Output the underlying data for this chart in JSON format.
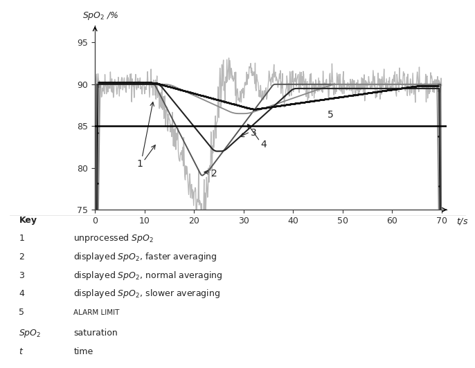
{
  "background_color": "#ffffff",
  "xlim": [
    0,
    71
  ],
  "ylim": [
    75,
    97
  ],
  "yticks": [
    75,
    80,
    85,
    90,
    95
  ],
  "xticks": [
    0,
    10,
    20,
    30,
    40,
    50,
    60,
    70
  ],
  "alarm_limit": 85,
  "line1_color": "#b8b8b8",
  "line2_color": "#555555",
  "line3_color": "#222222",
  "line4_color": "#888888",
  "dotted_color": "#111111",
  "alarm_color": "#000000",
  "text_color": "#222222",
  "label_fs": 9,
  "num_fs": 10
}
